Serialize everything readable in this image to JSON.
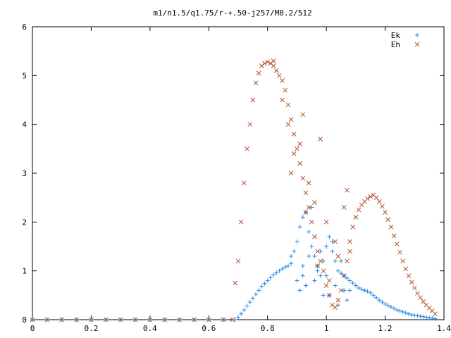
{
  "chart_data": {
    "type": "scatter",
    "title": "m1/n1.5/q1.75/r-+.50-j257/M0.2/512",
    "xlabel": "",
    "ylabel": "",
    "xlim": [
      0,
      1.4
    ],
    "ylim": [
      0,
      6
    ],
    "x_ticks": [
      "0",
      "0.2",
      "0.4",
      "0.6",
      "0.8",
      "1",
      "1.2",
      "1.4"
    ],
    "y_ticks": [
      "0",
      "1",
      "2",
      "3",
      "4",
      "5",
      "6"
    ],
    "grid": false,
    "legend_position": "top-right",
    "series": [
      {
        "name": "Ek",
        "marker": "plus",
        "color": "#1e88e5",
        "x": [
          0.0,
          0.05,
          0.1,
          0.15,
          0.2,
          0.25,
          0.3,
          0.35,
          0.4,
          0.45,
          0.5,
          0.55,
          0.6,
          0.65,
          0.69,
          0.7,
          0.71,
          0.72,
          0.73,
          0.74,
          0.75,
          0.76,
          0.77,
          0.78,
          0.79,
          0.8,
          0.81,
          0.82,
          0.83,
          0.84,
          0.85,
          0.86,
          0.87,
          0.88,
          0.89,
          0.9,
          0.91,
          0.92,
          0.93,
          0.94,
          0.95,
          0.96,
          0.97,
          0.98,
          0.99,
          1.0,
          1.01,
          1.02,
          1.03,
          1.04,
          1.05,
          1.06,
          1.07,
          1.08,
          1.09,
          1.1,
          1.11,
          1.12,
          1.13,
          1.14,
          1.15,
          1.16,
          1.17,
          1.18,
          1.19,
          1.2,
          1.21,
          1.22,
          1.23,
          1.24,
          1.25,
          1.26,
          1.27,
          1.28,
          1.29,
          1.3,
          1.31,
          1.32,
          1.33,
          1.34,
          1.35,
          1.36,
          1.37,
          0.9,
          0.91,
          0.92,
          0.93,
          0.94,
          0.95,
          0.97,
          0.99,
          1.0,
          1.02,
          1.03,
          1.05,
          1.06,
          1.07,
          0.88,
          0.92,
          0.96,
          0.98,
          1.01,
          1.04,
          1.08
        ],
        "y": [
          0.0,
          0.0,
          0.0,
          0.0,
          0.0,
          0.0,
          0.0,
          0.0,
          0.0,
          0.0,
          0.0,
          0.0,
          0.0,
          0.0,
          0.0,
          0.05,
          0.12,
          0.2,
          0.28,
          0.36,
          0.44,
          0.52,
          0.6,
          0.68,
          0.74,
          0.8,
          0.86,
          0.92,
          0.96,
          1.0,
          1.04,
          1.08,
          1.1,
          1.15,
          1.4,
          1.6,
          1.9,
          2.1,
          2.2,
          1.8,
          1.5,
          1.3,
          1.1,
          0.9,
          1.2,
          1.5,
          1.7,
          1.4,
          1.2,
          1.0,
          0.95,
          0.9,
          0.85,
          0.8,
          0.75,
          0.7,
          0.65,
          0.62,
          0.6,
          0.58,
          0.55,
          0.5,
          0.45,
          0.4,
          0.36,
          0.32,
          0.29,
          0.26,
          0.23,
          0.2,
          0.18,
          0.16,
          0.14,
          0.12,
          0.1,
          0.09,
          0.08,
          0.07,
          0.06,
          0.05,
          0.04,
          0.03,
          0.02,
          0.8,
          0.6,
          1.1,
          0.7,
          1.3,
          2.3,
          1.0,
          0.5,
          0.9,
          1.6,
          0.7,
          1.2,
          0.6,
          0.4,
          1.3,
          0.9,
          0.8,
          1.4,
          0.5,
          0.3,
          0.6
        ]
      },
      {
        "name": "Eh",
        "marker": "cross",
        "color": "#b5522b",
        "x": [
          0.0,
          0.05,
          0.1,
          0.15,
          0.2,
          0.25,
          0.3,
          0.35,
          0.4,
          0.45,
          0.5,
          0.55,
          0.6,
          0.65,
          0.68,
          0.69,
          0.7,
          0.71,
          0.72,
          0.73,
          0.74,
          0.75,
          0.76,
          0.77,
          0.78,
          0.79,
          0.8,
          0.81,
          0.82,
          0.83,
          0.84,
          0.85,
          0.86,
          0.87,
          0.88,
          0.89,
          0.9,
          0.91,
          0.92,
          0.93,
          0.94,
          0.95,
          0.96,
          0.97,
          0.98,
          0.99,
          1.0,
          1.01,
          1.02,
          1.03,
          1.04,
          1.05,
          1.06,
          1.07,
          1.08,
          1.09,
          1.1,
          1.11,
          1.12,
          1.13,
          1.14,
          1.15,
          1.16,
          1.17,
          1.18,
          1.19,
          1.2,
          1.21,
          1.22,
          1.23,
          1.24,
          1.25,
          1.26,
          1.27,
          1.28,
          1.29,
          1.3,
          1.31,
          1.32,
          1.33,
          1.34,
          1.35,
          1.36,
          1.37,
          0.82,
          0.85,
          0.87,
          0.89,
          0.91,
          0.92,
          0.94,
          0.96,
          0.98,
          1.0,
          1.03,
          1.06,
          1.08,
          1.1,
          0.88,
          0.93,
          0.97,
          1.01,
          1.04,
          1.07
        ],
        "y": [
          0.0,
          0.0,
          0.0,
          0.0,
          0.0,
          0.0,
          0.0,
          0.0,
          0.0,
          0.0,
          0.0,
          0.0,
          0.0,
          0.0,
          0.0,
          0.75,
          1.2,
          2.0,
          2.8,
          3.5,
          4.0,
          4.5,
          4.85,
          5.05,
          5.2,
          5.25,
          5.28,
          5.25,
          5.2,
          5.1,
          5.0,
          4.9,
          4.7,
          4.4,
          4.1,
          3.8,
          3.5,
          3.2,
          2.9,
          2.6,
          2.3,
          2.0,
          1.7,
          1.4,
          1.2,
          1.0,
          0.7,
          0.5,
          0.3,
          0.25,
          0.4,
          0.6,
          0.9,
          1.2,
          1.6,
          1.9,
          2.1,
          2.25,
          2.35,
          2.42,
          2.48,
          2.52,
          2.55,
          2.5,
          2.42,
          2.32,
          2.2,
          2.05,
          1.9,
          1.72,
          1.55,
          1.38,
          1.2,
          1.04,
          0.9,
          0.77,
          0.65,
          0.54,
          0.45,
          0.37,
          0.3,
          0.24,
          0.18,
          0.12,
          5.3,
          4.5,
          4.0,
          3.4,
          3.6,
          4.2,
          2.8,
          2.4,
          3.7,
          2.0,
          1.6,
          2.3,
          1.4,
          2.1,
          3.0,
          2.2,
          1.1,
          0.8,
          1.3,
          2.65
        ]
      }
    ]
  }
}
